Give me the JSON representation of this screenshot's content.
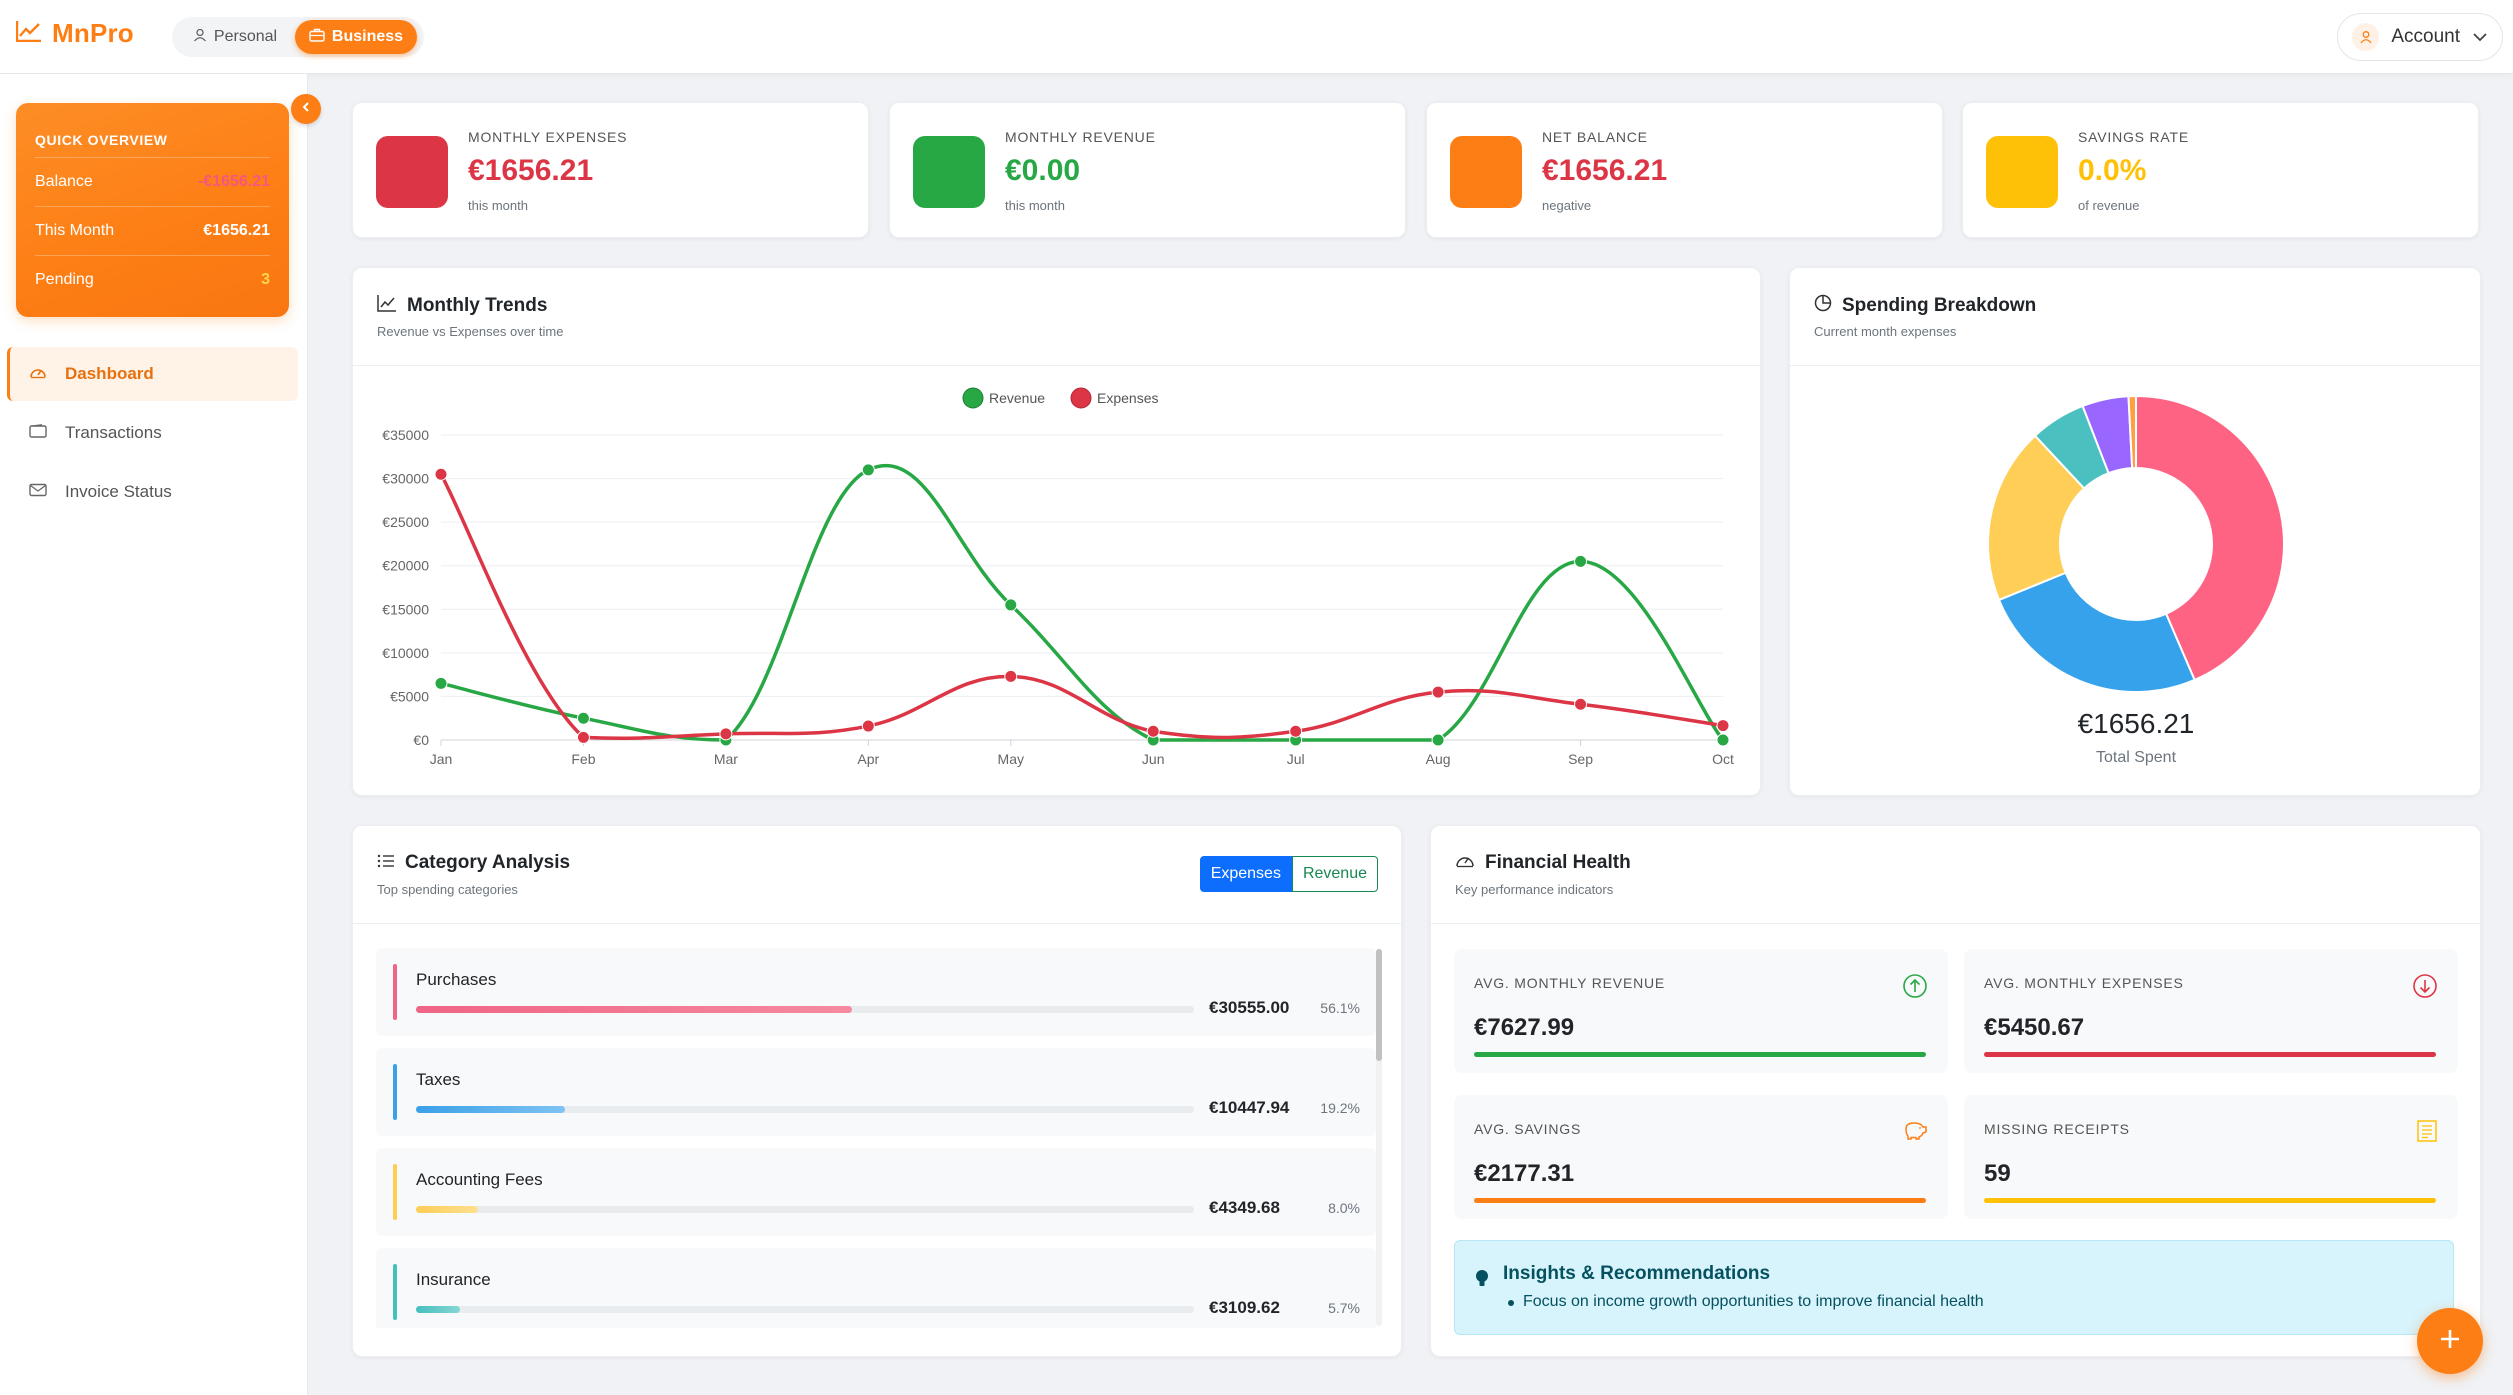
{
  "brand": {
    "name": "MnPro"
  },
  "mode": {
    "personal": "Personal",
    "business": "Business"
  },
  "account": {
    "label": "Account"
  },
  "quick_overview": {
    "title": "QUICK OVERVIEW",
    "rows": [
      {
        "label": "Balance",
        "value": "-€1656.21"
      },
      {
        "label": "This Month",
        "value": "€1656.21"
      },
      {
        "label": "Pending",
        "value": "3"
      }
    ]
  },
  "nav": {
    "items": [
      {
        "label": "Dashboard",
        "icon": "dashboard-icon"
      },
      {
        "label": "Transactions",
        "icon": "wallet-icon"
      },
      {
        "label": "Invoice Status",
        "icon": "envelope-icon"
      }
    ]
  },
  "stats": [
    {
      "label": "MONTHLY EXPENSES",
      "value": "€1656.21",
      "sub": "this month",
      "color": "#dc3545",
      "value_color": "#dc3545"
    },
    {
      "label": "MONTHLY REVENUE",
      "value": "€0.00",
      "sub": "this month",
      "color": "#28a745",
      "value_color": "#28a745"
    },
    {
      "label": "NET BALANCE",
      "value": "€1656.21",
      "sub": "negative",
      "color": "#fd7e14",
      "value_color": "#dc3545"
    },
    {
      "label": "SAVINGS RATE",
      "value": "0.0%",
      "sub": "of revenue",
      "color": "#ffc107",
      "value_color": "#ffc107"
    }
  ],
  "trends": {
    "title": "Monthly Trends",
    "subtitle": "Revenue vs Expenses over time"
  },
  "chart_data": [
    {
      "type": "line",
      "categories": [
        "Jan",
        "Feb",
        "Mar",
        "Apr",
        "May",
        "Jun",
        "Jul",
        "Aug",
        "Sep",
        "Oct"
      ],
      "series": [
        {
          "name": "Revenue",
          "color": "#28a745",
          "values": [
            6500,
            2500,
            0,
            31000,
            15500,
            0,
            0,
            0,
            20500,
            0
          ]
        },
        {
          "name": "Expenses",
          "color": "#dc3545",
          "values": [
            30500,
            300,
            700,
            1600,
            7300,
            1000,
            1000,
            5500,
            4100,
            1656.21
          ]
        }
      ],
      "ylim": [
        0,
        35000
      ],
      "yticks": [
        "€0",
        "€5000",
        "€10000",
        "€15000",
        "€20000",
        "€25000",
        "€30000",
        "€35000"
      ],
      "legend": "top-center",
      "grid": true
    },
    {
      "type": "pie",
      "values": [
        43,
        25,
        19,
        6,
        5,
        0.8
      ],
      "colors": [
        "#ff6384",
        "#36a2eb",
        "#ffce56",
        "#4bc0c0",
        "#9966ff",
        "#ff9f40"
      ],
      "center_value": "€1656.21",
      "center_label": "Total Spent"
    }
  ],
  "breakdown": {
    "title": "Spending Breakdown",
    "subtitle": "Current month expenses",
    "total": "€1656.21",
    "total_label": "Total Spent"
  },
  "categories": {
    "title": "Category Analysis",
    "subtitle": "Top spending categories",
    "toggle_expenses": "Expenses",
    "toggle_revenue": "Revenue",
    "items": [
      {
        "name": "Purchases",
        "amount": "€30555.00",
        "pct": "56.1%",
        "share": 56.1,
        "color": "#f06585"
      },
      {
        "name": "Taxes",
        "amount": "€10447.94",
        "pct": "19.2%",
        "share": 19.2,
        "color": "#3aa0e8"
      },
      {
        "name": "Accounting Fees",
        "amount": "€4349.68",
        "pct": "8.0%",
        "share": 8.0,
        "color": "#ffcd56"
      },
      {
        "name": "Insurance",
        "amount": "€3109.62",
        "pct": "5.7%",
        "share": 5.7,
        "color": "#46bfbd"
      }
    ]
  },
  "health": {
    "title": "Financial Health",
    "subtitle": "Key performance indicators",
    "kpis": [
      {
        "label": "AVG. MONTHLY REVENUE",
        "value": "€7627.99",
        "color": "#28a745"
      },
      {
        "label": "AVG. MONTHLY EXPENSES",
        "value": "€5450.67",
        "color": "#dc3545"
      },
      {
        "label": "AVG. SAVINGS",
        "value": "€2177.31",
        "color": "#fd7e14"
      },
      {
        "label": "MISSING RECEIPTS",
        "value": "59",
        "color": "#ffc107"
      }
    ],
    "insights_title": "Insights & Recommendations",
    "insights": [
      "Focus on income growth opportunities to improve financial health"
    ]
  }
}
